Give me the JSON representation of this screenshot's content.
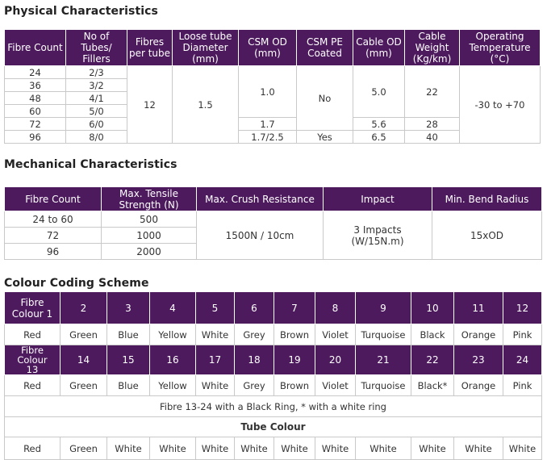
{
  "physical": {
    "title": "Physical Characteristics",
    "headers": {
      "fibre_count": "Fibre Count",
      "tubes_fillers": "No of Tubes/ Fillers",
      "fibres_per_tube": "Fibres per tube",
      "loose_tube_diameter": "Loose tube Diameter (mm)",
      "csm_od": "CSM OD (mm)",
      "csm_pe_coated": "CSM PE Coated",
      "cable_od": "Cable OD (mm)",
      "cable_weight": "Cable Weight (Kg/km)",
      "operating_temperature": "Operating Temperature (°C)"
    },
    "rows": [
      {
        "fibre_count": "24",
        "tubes_fillers": "2/3"
      },
      {
        "fibre_count": "36",
        "tubes_fillers": "3/2"
      },
      {
        "fibre_count": "48",
        "tubes_fillers": "4/1"
      },
      {
        "fibre_count": "60",
        "tubes_fillers": "5/0"
      },
      {
        "fibre_count": "72",
        "tubes_fillers": "6/0"
      },
      {
        "fibre_count": "96",
        "tubes_fillers": "8/0"
      }
    ],
    "fibres_per_tube": "12",
    "loose_tube_diameter": "1.5",
    "csm_od": [
      "1.0",
      "1.7",
      "1.7/2.5"
    ],
    "csm_pe_coated": [
      "No",
      "Yes"
    ],
    "cable_od": [
      "5.0",
      "5.6",
      "6.5"
    ],
    "cable_weight": [
      "22",
      "28",
      "40"
    ],
    "operating_temperature": "-30 to +70"
  },
  "mechanical": {
    "title": "Mechanical Characteristics",
    "headers": {
      "fibre_count": "Fibre Count",
      "max_tensile": "Max. Tensile Strength (N)",
      "max_crush": "Max. Crush Resistance",
      "impact": "Impact",
      "min_bend": "Min. Bend Radius"
    },
    "rows": [
      {
        "fibre_count": "24 to 60",
        "max_tensile": "500"
      },
      {
        "fibre_count": "72",
        "max_tensile": "1000"
      },
      {
        "fibre_count": "96",
        "max_tensile": "2000"
      }
    ],
    "max_crush": "1500N / 10cm",
    "impact": "3 Impacts (W/15N.m)",
    "min_bend": "15xOD"
  },
  "colour": {
    "title": "Colour Coding Scheme",
    "row1_header": "Fibre Colour 1",
    "row1_numbers": [
      "2",
      "3",
      "4",
      "5",
      "6",
      "7",
      "8",
      "9",
      "10",
      "11",
      "12"
    ],
    "row1_colours": [
      "Red",
      "Green",
      "Blue",
      "Yellow",
      "White",
      "Grey",
      "Brown",
      "Violet",
      "Turquoise",
      "Black",
      "Orange",
      "Pink"
    ],
    "row2_header": "Fibre Colour 13",
    "row2_numbers": [
      "14",
      "15",
      "16",
      "17",
      "18",
      "19",
      "20",
      "21",
      "22",
      "23",
      "24"
    ],
    "row2_colours": [
      "Red",
      "Green",
      "Blue",
      "Yellow",
      "White",
      "Grey",
      "Brown",
      "Violet",
      "Turquoise",
      "Black*",
      "Orange",
      "Pink"
    ],
    "note": "Fibre 13-24 with a Black Ring, * with a white ring",
    "tube_colour_title": "Tube Colour",
    "tube_colours": [
      "Red",
      "Green",
      "White",
      "White",
      "White",
      "White",
      "White",
      "White",
      "White",
      "White",
      "White",
      "White"
    ]
  }
}
